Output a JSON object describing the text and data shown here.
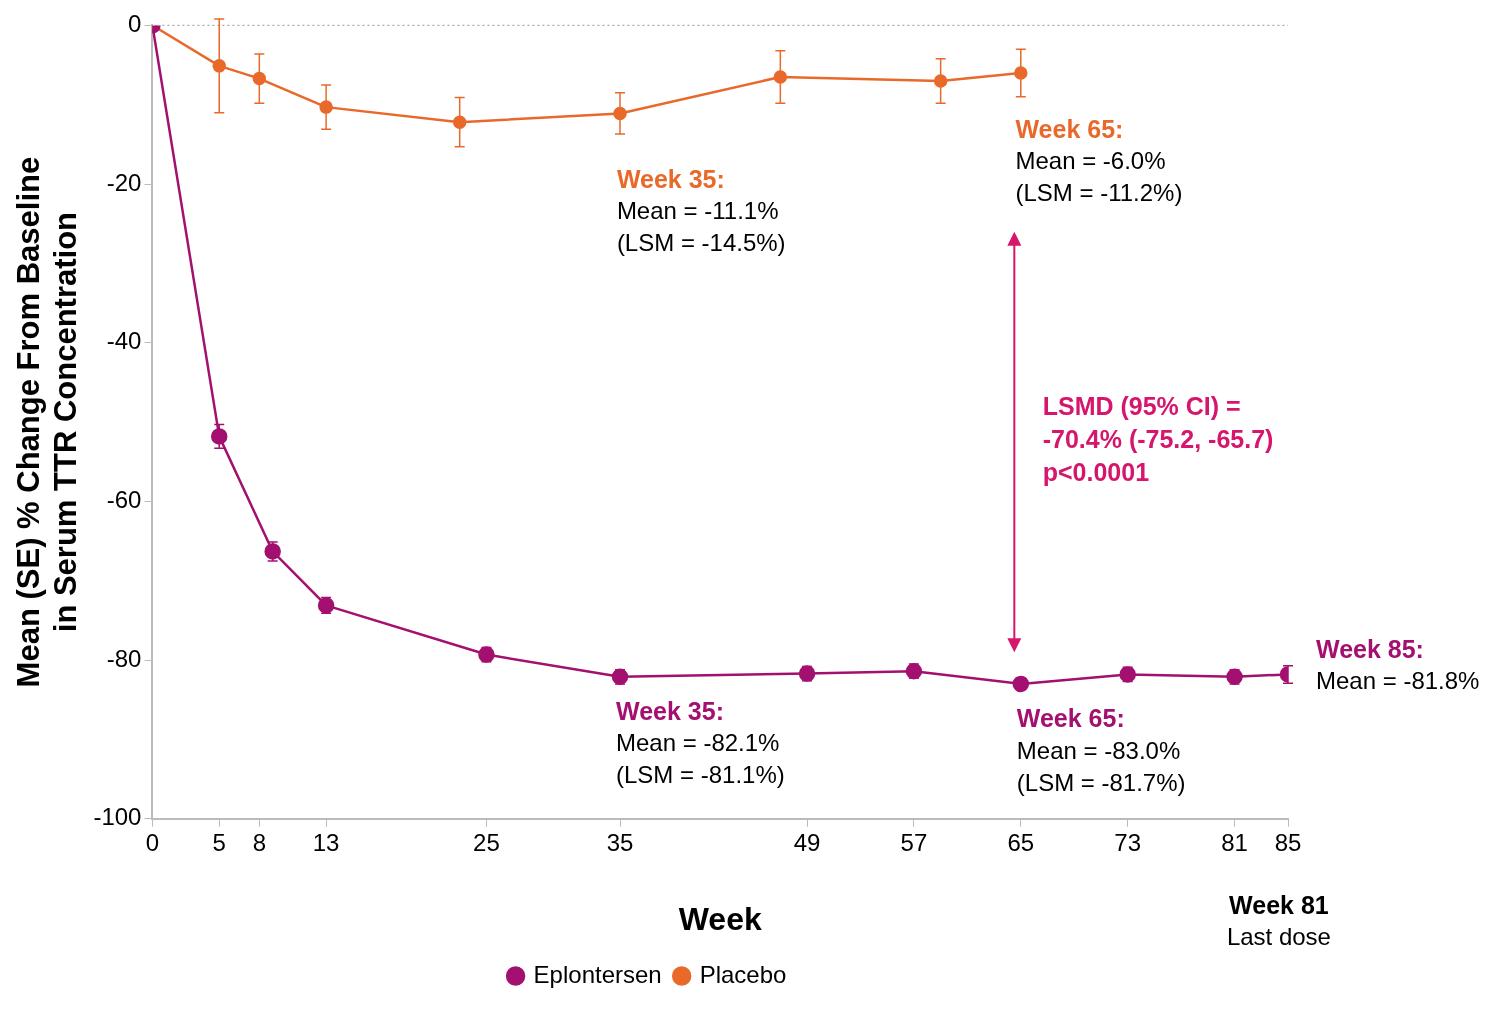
{
  "chart_data": {
    "type": "line",
    "xlabel": "Week",
    "ylabel": "Mean (SE) % Change From Baseline\nin Serum TTR Concentration",
    "xlim": [
      0,
      85
    ],
    "xticks": [
      0,
      5,
      8,
      13,
      25,
      35,
      49,
      57,
      65,
      73,
      81,
      85
    ],
    "ylim": [
      -100,
      0
    ],
    "yticks": [
      -100,
      -80,
      -60,
      -40,
      -20,
      0
    ],
    "grid": false,
    "legend": "bottom",
    "marker": "circle",
    "line_style": "solid",
    "series": [
      {
        "name": "Eplontersen",
        "color": "#a3106f",
        "x": [
          0,
          5,
          9,
          13,
          25,
          35,
          49,
          57,
          65,
          73,
          81,
          85
        ],
        "values": [
          0,
          -51.8,
          -66.3,
          -73.1,
          -79.3,
          -82.1,
          -81.7,
          -81.4,
          -83.0,
          -81.8,
          -82.1,
          -81.8
        ],
        "errors": [
          null,
          1.5,
          1.2,
          1.0,
          0.9,
          0.9,
          0.9,
          0.9,
          0.7,
          0.9,
          0.9,
          1.1
        ]
      },
      {
        "name": "Placebo",
        "color": "#e8692a",
        "x": [
          0,
          5,
          8,
          13,
          23,
          35,
          47,
          59,
          65
        ],
        "values": [
          0,
          -5.1,
          -6.7,
          -10.3,
          -12.2,
          -11.1,
          -6.5,
          -7.0,
          -6.0
        ],
        "errors": [
          null,
          5.9,
          3.1,
          2.8,
          3.1,
          2.6,
          3.3,
          2.8,
          3.0
        ]
      }
    ],
    "ref_lines": [
      {
        "axis": "y",
        "value": 0,
        "color": "#aaaaaa",
        "line_style": "dotted"
      }
    ],
    "annotations": [
      "Week 35:\nMean = -11.1%\n(LSM = -14.5%)",
      "Week 65:\nMean = -6.0%\n(LSM = -11.2%)",
      {
        "text": "Week 35:\nMean = -82.1%\n(LSM = -81.1%)",
        "x": 35,
        "y": -82.1
      },
      {
        "text": "Week 65:\nMean = -83.0%\n(LSM = -81.7%)",
        "x": 65,
        "y": -83.0
      },
      {
        "text": "Week 85:\nMean = -81.8%",
        "x": 85,
        "y": -81.8
      },
      "LSMD (95% CI) =\n-70.4% (-75.2, -65.7)\np<0.0001",
      "Week 81\nLast dose"
    ]
  }
}
